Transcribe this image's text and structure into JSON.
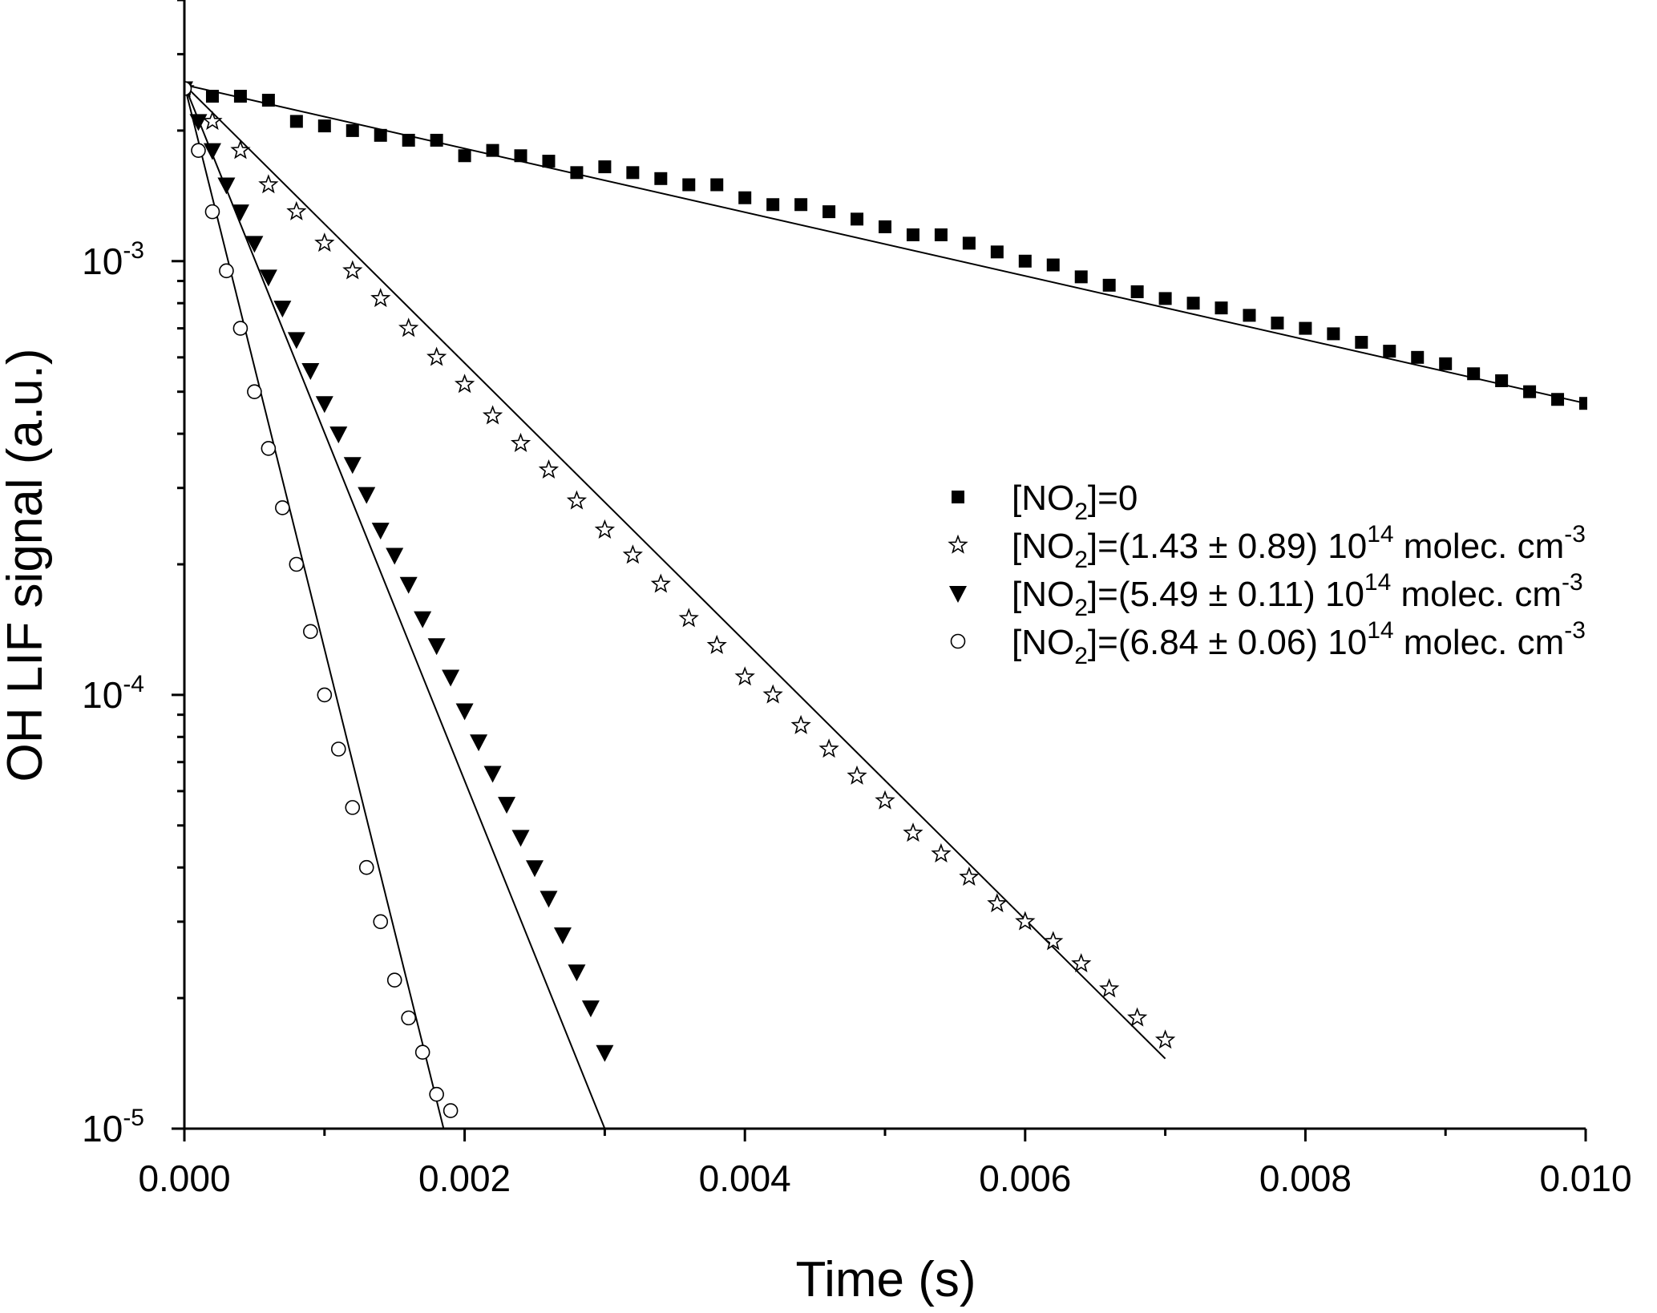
{
  "chart_data": {
    "type": "scatter",
    "title": "",
    "xlabel": "Time (s)",
    "ylabel": "OH LIF signal (a.u.)",
    "xscale": "linear",
    "yscale": "log",
    "xlim": [
      0.0,
      0.01
    ],
    "ylim": [
      1e-05,
      0.004
    ],
    "x_ticks": [
      {
        "value": 0.0,
        "label": "0.000"
      },
      {
        "value": 0.002,
        "label": "0.002"
      },
      {
        "value": 0.004,
        "label": "0.004"
      },
      {
        "value": 0.006,
        "label": "0.006"
      },
      {
        "value": 0.008,
        "label": "0.008"
      },
      {
        "value": 0.01,
        "label": "0.010"
      }
    ],
    "y_ticks": [
      {
        "value": 0.001,
        "base": "10",
        "exp": "-3"
      },
      {
        "value": 0.0001,
        "base": "10",
        "exp": "-4"
      },
      {
        "value": 1e-05,
        "base": "10",
        "exp": "-5"
      }
    ],
    "grid": false,
    "legend_position": "right",
    "series": [
      {
        "legend": {
          "pre": "[NO",
          "sub": "2",
          "mid": "]=0",
          "sup": "",
          "post": ""
        },
        "marker": "filled-square",
        "x": [
          0.0,
          0.0002,
          0.0004,
          0.0006,
          0.0008,
          0.001,
          0.0012,
          0.0014,
          0.0016,
          0.0018,
          0.002,
          0.0022,
          0.0024,
          0.0026,
          0.0028,
          0.003,
          0.0032,
          0.0034,
          0.0036,
          0.0038,
          0.004,
          0.0042,
          0.0044,
          0.0046,
          0.0048,
          0.005,
          0.0052,
          0.0054,
          0.0056,
          0.0058,
          0.006,
          0.0062,
          0.0064,
          0.0066,
          0.0068,
          0.007,
          0.0072,
          0.0074,
          0.0076,
          0.0078,
          0.008,
          0.0082,
          0.0084,
          0.0086,
          0.0088,
          0.009,
          0.0092,
          0.0094,
          0.0096,
          0.0098,
          0.01
        ],
        "y": [
          0.0025,
          0.0024,
          0.0024,
          0.00235,
          0.0021,
          0.00205,
          0.002,
          0.00195,
          0.0019,
          0.0019,
          0.00175,
          0.0018,
          0.00175,
          0.0017,
          0.0016,
          0.00165,
          0.0016,
          0.00155,
          0.0015,
          0.0015,
          0.0014,
          0.00135,
          0.00135,
          0.0013,
          0.00125,
          0.0012,
          0.00115,
          0.00115,
          0.0011,
          0.00105,
          0.001,
          0.00098,
          0.00092,
          0.00088,
          0.00085,
          0.00082,
          0.0008,
          0.00078,
          0.00075,
          0.00072,
          0.0007,
          0.00068,
          0.00065,
          0.00062,
          0.0006,
          0.00058,
          0.00055,
          0.00053,
          0.0005,
          0.00048,
          0.00047
        ],
        "fit": {
          "x": [
            0.0,
            0.01
          ],
          "y": [
            0.00255,
            0.00047
          ]
        }
      },
      {
        "legend": {
          "pre": "[NO",
          "sub": "2",
          "mid": "]=(1.43 ± 0.89) 10",
          "sup": "14",
          "post": " molec. cm",
          "sup2": "-3"
        },
        "marker": "open-star",
        "x": [
          0.0,
          0.0002,
          0.0004,
          0.0006,
          0.0008,
          0.001,
          0.0012,
          0.0014,
          0.0016,
          0.0018,
          0.002,
          0.0022,
          0.0024,
          0.0026,
          0.0028,
          0.003,
          0.0032,
          0.0034,
          0.0036,
          0.0038,
          0.004,
          0.0042,
          0.0044,
          0.0046,
          0.0048,
          0.005,
          0.0052,
          0.0054,
          0.0056,
          0.0058,
          0.006,
          0.0062,
          0.0064,
          0.0066,
          0.0068,
          0.007
        ],
        "y": [
          0.0025,
          0.0021,
          0.0018,
          0.0015,
          0.0013,
          0.0011,
          0.00095,
          0.00082,
          0.0007,
          0.0006,
          0.00052,
          0.00044,
          0.00038,
          0.00033,
          0.00028,
          0.00024,
          0.00021,
          0.00018,
          0.00015,
          0.00013,
          0.00011,
          0.0001,
          8.5e-05,
          7.5e-05,
          6.5e-05,
          5.7e-05,
          4.8e-05,
          4.3e-05,
          3.8e-05,
          3.3e-05,
          3e-05,
          2.7e-05,
          2.4e-05,
          2.1e-05,
          1.8e-05,
          1.6e-05
        ],
        "fit": {
          "x": [
            0.0,
            0.007
          ],
          "y": [
            0.00255,
            1.45e-05
          ]
        }
      },
      {
        "legend": {
          "pre": "[NO",
          "sub": "2",
          "mid": "]=(5.49 ± 0.11) 10",
          "sup": "14",
          "post": " molec. cm",
          "sup2": "-3"
        },
        "marker": "filled-triangle-down",
        "x": [
          0.0,
          0.0001,
          0.0002,
          0.0003,
          0.0004,
          0.0005,
          0.0006,
          0.0007,
          0.0008,
          0.0009,
          0.001,
          0.0011,
          0.0012,
          0.0013,
          0.0014,
          0.0015,
          0.0016,
          0.0017,
          0.0018,
          0.0019,
          0.002,
          0.0021,
          0.0022,
          0.0023,
          0.0024,
          0.0025,
          0.0026,
          0.0027,
          0.0028,
          0.0029,
          0.003
        ],
        "y": [
          0.0025,
          0.0021,
          0.0018,
          0.0015,
          0.0013,
          0.0011,
          0.00092,
          0.00078,
          0.00066,
          0.00056,
          0.00047,
          0.0004,
          0.00034,
          0.00029,
          0.00024,
          0.00021,
          0.00018,
          0.00015,
          0.00013,
          0.00011,
          9.2e-05,
          7.8e-05,
          6.6e-05,
          5.6e-05,
          4.7e-05,
          4e-05,
          3.4e-05,
          2.8e-05,
          2.3e-05,
          1.9e-05,
          1.5e-05
        ],
        "fit": {
          "x": [
            0.0,
            0.003
          ],
          "y": [
            0.00255,
            1e-05
          ]
        }
      },
      {
        "legend": {
          "pre": "[NO",
          "sub": "2",
          "mid": "]=(6.84 ± 0.06) 10",
          "sup": "14",
          "post": " molec. cm",
          "sup2": "-3"
        },
        "marker": "open-circle",
        "x": [
          0.0,
          0.0001,
          0.0002,
          0.0003,
          0.0004,
          0.0005,
          0.0006,
          0.0007,
          0.0008,
          0.0009,
          0.001,
          0.0011,
          0.0012,
          0.0013,
          0.0014,
          0.0015,
          0.0016,
          0.0017,
          0.0018,
          0.0019
        ],
        "y": [
          0.0025,
          0.0018,
          0.0013,
          0.00095,
          0.0007,
          0.0005,
          0.00037,
          0.00027,
          0.0002,
          0.00014,
          0.0001,
          7.5e-05,
          5.5e-05,
          4e-05,
          3e-05,
          2.2e-05,
          1.8e-05,
          1.5e-05,
          1.2e-05,
          1.1e-05
        ],
        "fit": {
          "x": [
            0.0,
            0.00185
          ],
          "y": [
            0.00255,
            1e-05
          ]
        }
      }
    ]
  }
}
